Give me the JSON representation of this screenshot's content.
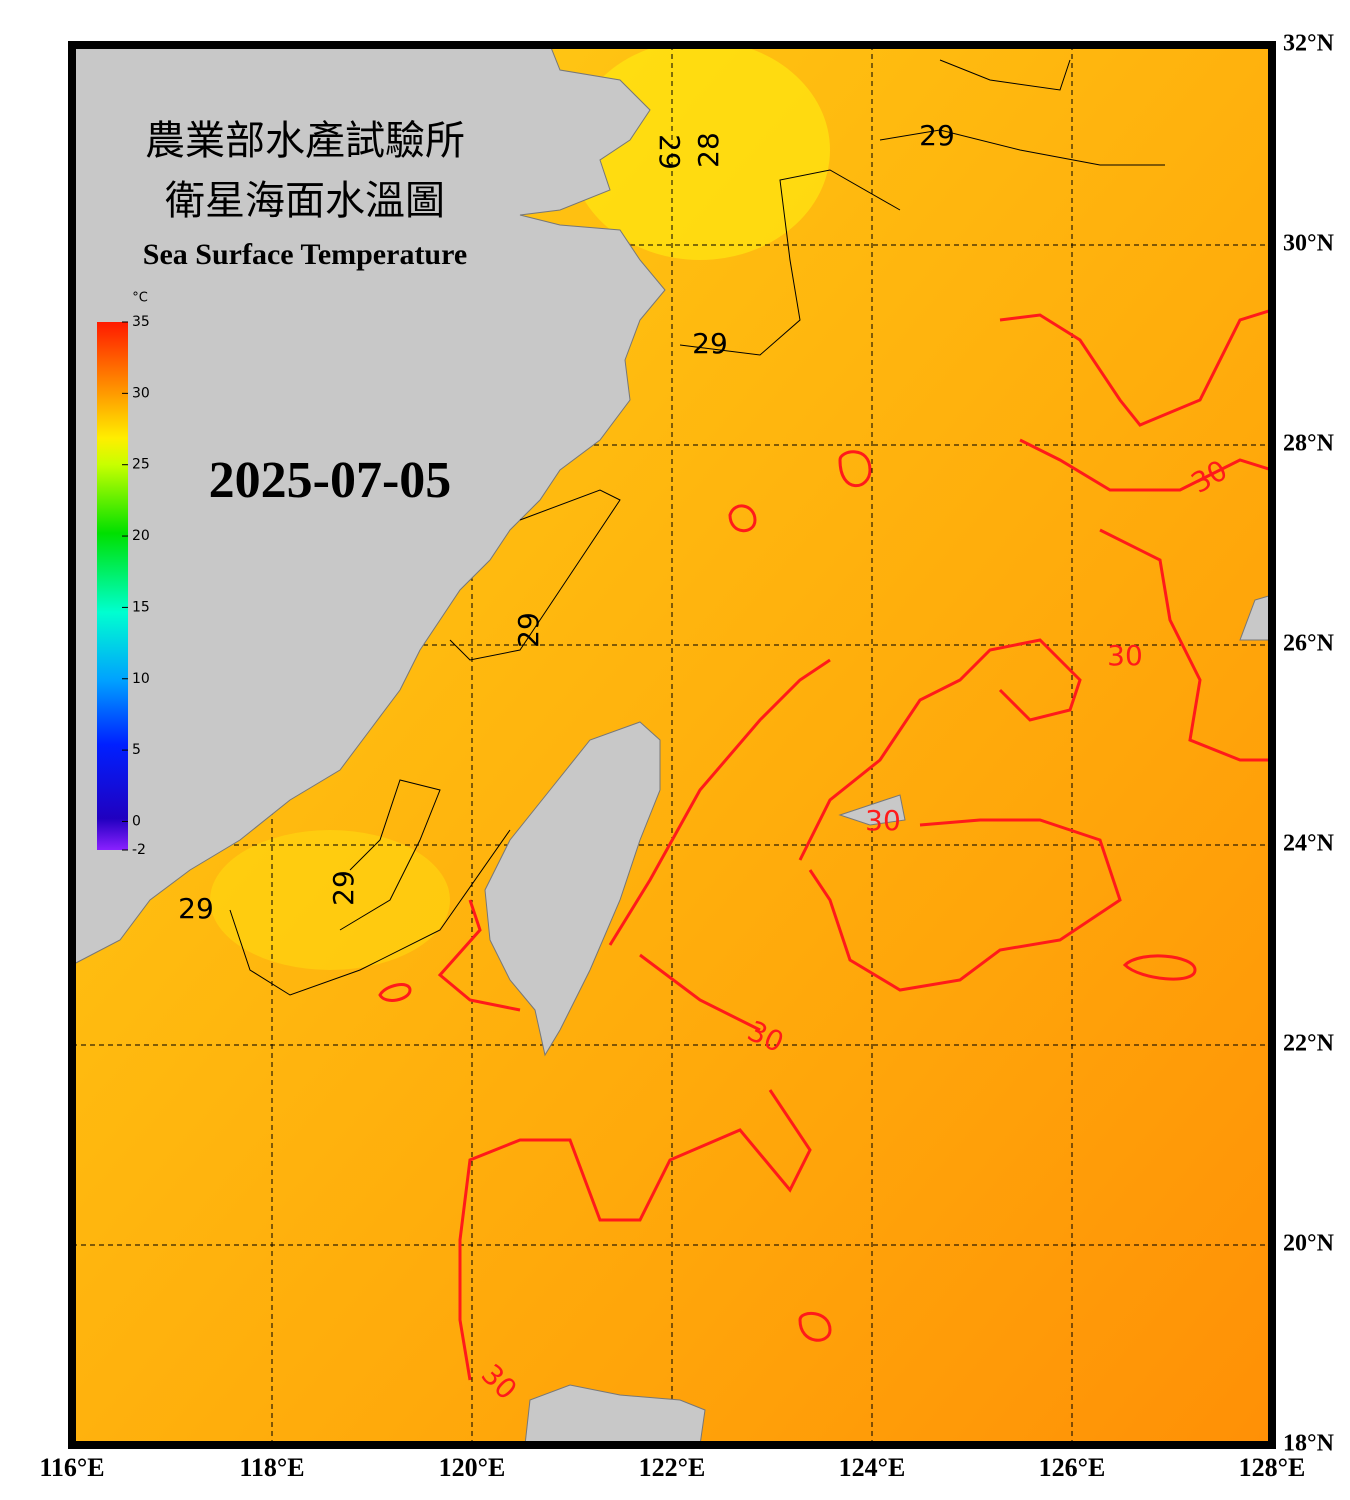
{
  "header": {
    "title_zh_1": "農業部水產試驗所",
    "title_zh_2": "衛星海面水溫圖",
    "title_en": "Sea Surface Temperature"
  },
  "date": "2025-07-05",
  "colorbar": {
    "unit": "°C",
    "range": [
      -2,
      35
    ],
    "ticks": [
      35,
      30,
      25,
      20,
      15,
      10,
      5,
      0,
      -2
    ]
  },
  "map": {
    "lon_range": [
      116,
      128
    ],
    "lat_range": [
      18,
      32
    ],
    "lon_ticks": [
      {
        "value": 116,
        "label": "116°E"
      },
      {
        "value": 118,
        "label": "118°E"
      },
      {
        "value": 120,
        "label": "120°E"
      },
      {
        "value": 122,
        "label": "122°E"
      },
      {
        "value": 124,
        "label": "124°E"
      },
      {
        "value": 126,
        "label": "126°E"
      },
      {
        "value": 128,
        "label": "128°E"
      }
    ],
    "lat_ticks": [
      {
        "value": 18,
        "label": "18°N"
      },
      {
        "value": 20,
        "label": "20°N"
      },
      {
        "value": 22,
        "label": "22°N"
      },
      {
        "value": 24,
        "label": "24°N"
      },
      {
        "value": 26,
        "label": "26°N"
      },
      {
        "value": 28,
        "label": "28°N"
      },
      {
        "value": 30,
        "label": "30°N"
      },
      {
        "value": 32,
        "label": "32°N"
      }
    ],
    "contour_labels": [
      "29",
      "28",
      "29",
      "29",
      "29",
      "29",
      "29",
      "30",
      "30",
      "30",
      "30",
      "30"
    ]
  }
}
